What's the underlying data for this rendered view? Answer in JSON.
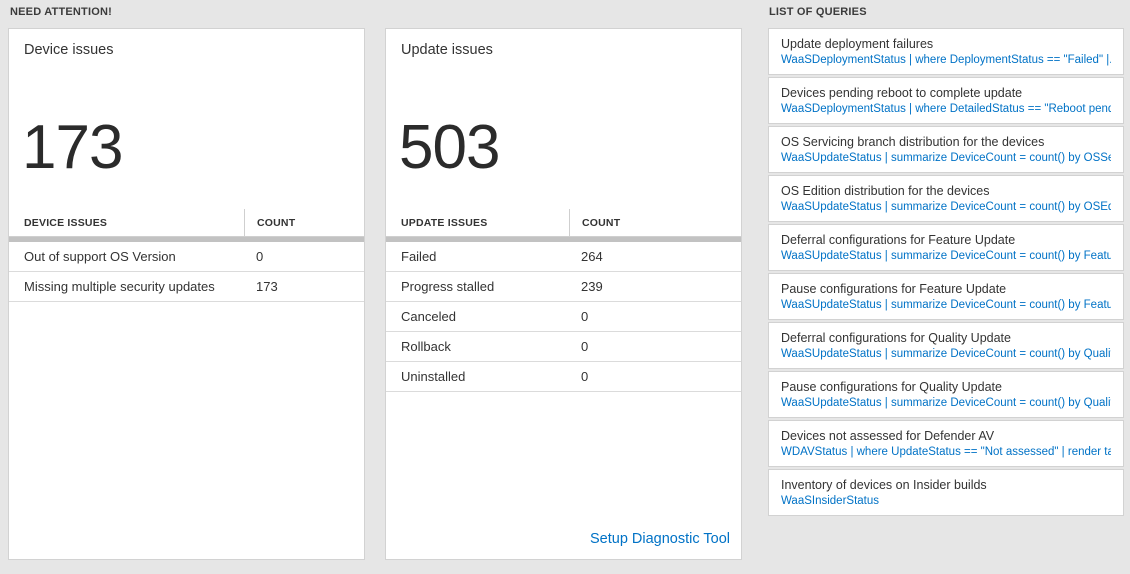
{
  "page": {
    "background": "#e6e6e6",
    "accent_blue": "#0072c6"
  },
  "headers": {
    "need_attention": "NEED ATTENTION!",
    "list_of_queries": "LIST OF QUERIES"
  },
  "device_tile": {
    "title": "Device issues",
    "count": "173",
    "table": {
      "col_issue": "DEVICE ISSUES",
      "col_count": "COUNT",
      "rows": [
        {
          "issue": "Out of support OS Version",
          "count": "0"
        },
        {
          "issue": "Missing multiple security updates",
          "count": "173"
        }
      ]
    }
  },
  "update_tile": {
    "title": "Update issues",
    "count": "503",
    "table": {
      "col_issue": "UPDATE ISSUES",
      "col_count": "COUNT",
      "rows": [
        {
          "issue": "Failed",
          "count": "264"
        },
        {
          "issue": "Progress stalled",
          "count": "239"
        },
        {
          "issue": "Canceled",
          "count": "0"
        },
        {
          "issue": "Rollback",
          "count": "0"
        },
        {
          "issue": "Uninstalled",
          "count": "0"
        }
      ]
    },
    "footer_link": "Setup Diagnostic Tool"
  },
  "query_list": {
    "items": [
      {
        "title": "Update deployment failures",
        "query": "WaaSDeploymentStatus | where DeploymentStatus == \"Failed\" |..."
      },
      {
        "title": "Devices pending reboot to complete update",
        "query": "WaaSDeploymentStatus | where DetailedStatus == \"Reboot pend..."
      },
      {
        "title": "OS Servicing branch distribution for the devices",
        "query": "WaaSUpdateStatus | summarize DeviceCount = count() by OSSer..."
      },
      {
        "title": "OS Edition distribution for the devices",
        "query": "WaaSUpdateStatus | summarize DeviceCount = count() by OSEdit..."
      },
      {
        "title": "Deferral configurations for Feature Update",
        "query": "WaaSUpdateStatus | summarize DeviceCount = count() by Featur..."
      },
      {
        "title": "Pause configurations for Feature Update",
        "query": "WaaSUpdateStatus | summarize DeviceCount = count() by Featur..."
      },
      {
        "title": "Deferral configurations for Quality Update",
        "query": "WaaSUpdateStatus | summarize DeviceCount = count() by Qualit..."
      },
      {
        "title": "Pause configurations for Quality Update",
        "query": "WaaSUpdateStatus | summarize DeviceCount = count() by Qualit..."
      },
      {
        "title": "Devices not assessed for Defender AV",
        "query": "WDAVStatus | where UpdateStatus == \"Not assessed\" | render ta..."
      },
      {
        "title": "Inventory of devices on Insider builds",
        "query": "WaaSInsiderStatus"
      }
    ]
  }
}
